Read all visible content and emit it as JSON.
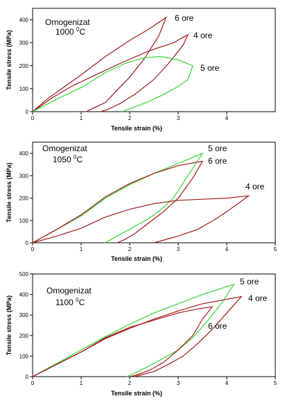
{
  "chart_data": [
    {
      "type": "line",
      "title_prefix": "Omogenizat",
      "title_value": "1000",
      "title_unit_sup": "0",
      "title_unit": "C",
      "xlabel": "Tensile strain (%)",
      "ylabel": "Tensile stress (MPa)",
      "xlim": [
        0,
        5
      ],
      "ylim": [
        0,
        450
      ],
      "xticks": [
        "0",
        "1",
        "2",
        "3",
        "4"
      ],
      "yticks": [
        "0",
        "100",
        "200",
        "300",
        "400"
      ],
      "series": [
        {
          "name": "6 ore",
          "color": "#a01818",
          "x": [
            0,
            0.3,
            0.6,
            1.0,
            1.5,
            2.0,
            2.4,
            2.75,
            2.6,
            2.3,
            2.0,
            1.7,
            1.5,
            1.2,
            1.1
          ],
          "y": [
            0,
            55,
            100,
            160,
            240,
            310,
            360,
            410,
            330,
            230,
            150,
            85,
            40,
            10,
            0
          ]
        },
        {
          "name": "4 ore",
          "color": "#a01818",
          "x": [
            0,
            0.4,
            0.8,
            1.2,
            1.8,
            2.4,
            2.9,
            3.2,
            3.1,
            2.8,
            2.5,
            2.1,
            1.8,
            1.55,
            1.4
          ],
          "y": [
            0,
            60,
            110,
            150,
            210,
            265,
            300,
            335,
            290,
            210,
            140,
            75,
            35,
            10,
            0
          ]
        },
        {
          "name": "5 ore",
          "color": "#33d633",
          "x": [
            0,
            0.5,
            1.0,
            1.5,
            1.9,
            2.3,
            2.65,
            3.0,
            3.3,
            3.2,
            3.0,
            2.7,
            2.4,
            2.1,
            1.9,
            1.85
          ],
          "y": [
            0,
            55,
            105,
            170,
            210,
            235,
            240,
            225,
            200,
            140,
            110,
            75,
            45,
            20,
            5,
            0
          ]
        }
      ]
    },
    {
      "type": "line",
      "title_prefix": "Omogenizat",
      "title_value": "1050",
      "title_unit_sup": "0",
      "title_unit": "C",
      "xlabel": "Tensile strain (%)",
      "ylabel": "Tensile stress (MPa)",
      "xlim": [
        0,
        5
      ],
      "ylim": [
        0,
        450
      ],
      "xticks": [
        "0",
        "1",
        "2",
        "3",
        "4",
        "5"
      ],
      "yticks": [
        "0",
        "100",
        "200",
        "300",
        "400"
      ],
      "series": [
        {
          "name": "5 ore",
          "color": "#33d633",
          "x": [
            0,
            0.5,
            1.0,
            1.5,
            2.0,
            2.5,
            3.0,
            3.5,
            3.2,
            2.9,
            2.6,
            2.4,
            2.0,
            1.7,
            1.5
          ],
          "y": [
            0,
            60,
            120,
            200,
            260,
            310,
            355,
            400,
            300,
            200,
            140,
            110,
            60,
            25,
            0
          ]
        },
        {
          "name": "6 ore",
          "color": "#a01818",
          "x": [
            0,
            0.5,
            1.0,
            1.5,
            2.0,
            2.5,
            3.0,
            3.5,
            3.3,
            3.0,
            2.7,
            2.4,
            2.1,
            1.9,
            1.75
          ],
          "y": [
            0,
            60,
            125,
            205,
            265,
            310,
            345,
            365,
            290,
            200,
            140,
            90,
            40,
            15,
            0
          ]
        },
        {
          "name": "4 ore",
          "color": "#a01818",
          "x": [
            0,
            0.5,
            1.0,
            1.5,
            2.0,
            2.5,
            3.0,
            3.5,
            4.0,
            4.45,
            4.2,
            3.8,
            3.4,
            3.0,
            2.5
          ],
          "y": [
            0,
            30,
            65,
            115,
            150,
            175,
            190,
            195,
            200,
            210,
            170,
            110,
            60,
            30,
            0
          ]
        }
      ]
    },
    {
      "type": "line",
      "title_prefix": "Omogenizat",
      "title_value": "1100",
      "title_unit_sup": "0",
      "title_unit": "C",
      "xlabel": "Tensile strain (%)",
      "ylabel": "Tensile stress (MPa)",
      "xlim": [
        0,
        5
      ],
      "ylim": [
        0,
        500
      ],
      "xticks": [
        "0",
        "1",
        "2",
        "3",
        "4",
        "5"
      ],
      "yticks": [
        "0",
        "100",
        "200",
        "300",
        "400",
        "500"
      ],
      "series": [
        {
          "name": "5 ore",
          "color": "#33d633",
          "x": [
            0,
            0.5,
            1.0,
            1.5,
            2.0,
            2.5,
            3.0,
            3.5,
            4.15,
            3.9,
            3.6,
            3.3,
            3.0,
            2.7,
            2.3,
            1.95
          ],
          "y": [
            0,
            65,
            130,
            195,
            255,
            310,
            355,
            400,
            450,
            360,
            270,
            190,
            130,
            90,
            40,
            0
          ]
        },
        {
          "name": "4 ore",
          "color": "#a01818",
          "x": [
            0,
            0.5,
            1.0,
            1.5,
            2.0,
            2.5,
            3.0,
            3.5,
            4.3,
            4.0,
            3.7,
            3.4,
            3.1,
            2.8,
            2.5,
            2.1
          ],
          "y": [
            0,
            60,
            120,
            185,
            235,
            280,
            320,
            355,
            390,
            310,
            230,
            160,
            100,
            60,
            25,
            0
          ]
        },
        {
          "name": "6 ore",
          "color": "#a01818",
          "x": [
            0,
            0.5,
            1.0,
            1.5,
            2.0,
            2.5,
            3.0,
            3.4,
            3.7,
            3.5,
            3.3,
            3.0,
            2.7,
            2.4,
            2.1,
            2.0
          ],
          "y": [
            0,
            60,
            120,
            190,
            240,
            275,
            310,
            330,
            340,
            280,
            200,
            130,
            70,
            30,
            5,
            0
          ]
        }
      ]
    }
  ]
}
